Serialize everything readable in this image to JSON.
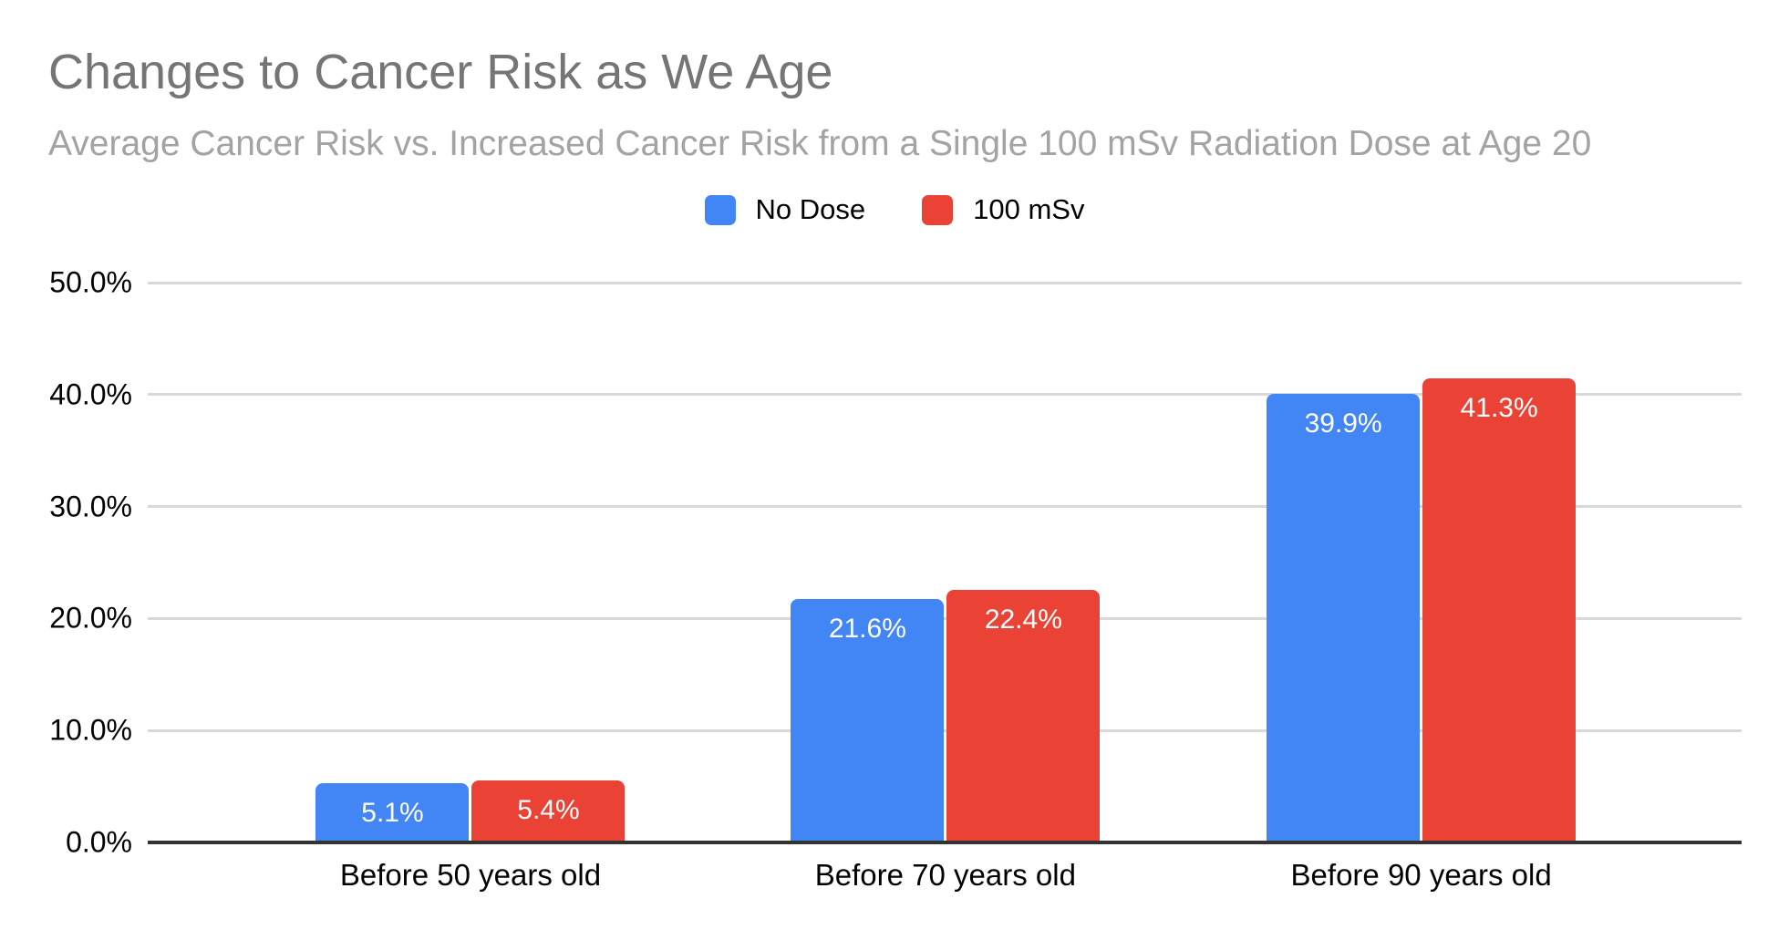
{
  "header": {
    "title": "Changes to Cancer Risk as We Age",
    "subtitle": "Average Cancer Risk vs. Increased Cancer Risk from a Single 100 mSv Radiation Dose at Age 20"
  },
  "legend": {
    "position": "top",
    "items": [
      {
        "label": "No Dose",
        "color": "#4285f4"
      },
      {
        "label": "100 mSv",
        "color": "#ea4335"
      }
    ]
  },
  "colors": {
    "background": "#ffffff",
    "title_text": "#757575",
    "subtitle_text": "#a3a3a3",
    "axis_text": "#000000",
    "gridline": "#d9d9d9",
    "axis_baseline": "#333333",
    "bar_label_text": "#ffffff",
    "series_no_dose": "#4285f4",
    "series_100_msv": "#ea4335"
  },
  "chart_data": {
    "type": "bar",
    "title": "Changes to Cancer Risk as We Age",
    "subtitle": "Average Cancer Risk vs. Increased Cancer Risk from a Single 100 mSv Radiation Dose at Age 20",
    "categories": [
      "Before 50 years old",
      "Before 70 years old",
      "Before 90 years old"
    ],
    "series": [
      {
        "name": "No Dose",
        "color": "#4285f4",
        "values": [
          5.1,
          21.6,
          39.9
        ],
        "labels": [
          "5.1%",
          "21.6%",
          "39.9%"
        ]
      },
      {
        "name": "100 mSv",
        "color": "#ea4335",
        "values": [
          5.4,
          22.4,
          41.3
        ],
        "labels": [
          "5.4%",
          "22.4%",
          "41.3%"
        ]
      }
    ],
    "xlabel": "",
    "ylabel": "",
    "ylim": [
      0,
      50
    ],
    "yticks": {
      "values": [
        0,
        10,
        20,
        30,
        40,
        50
      ],
      "labels": [
        "0.0%",
        "10.0%",
        "20.0%",
        "30.0%",
        "40.0%",
        "50.0%"
      ]
    },
    "grid": true,
    "legend_position": "top"
  }
}
